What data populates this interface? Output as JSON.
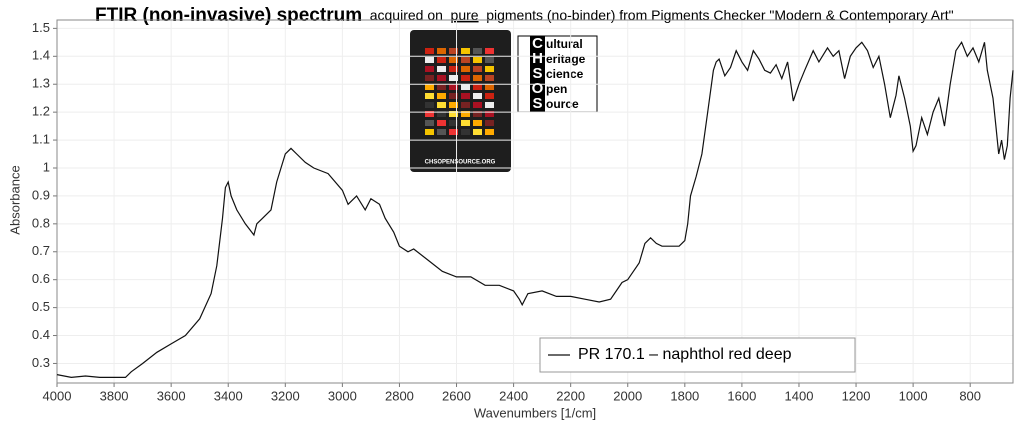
{
  "chart_data": {
    "type": "line",
    "title": "FTIR (non-invasive) spectrum",
    "subtitle_parts": [
      "acquired on",
      "pure",
      "pigments (no-binder) from Pigments Checker \"Modern & Contemporary Art\""
    ],
    "x_label": "Wavenumbers [1/cm]",
    "y_label": "Absorbance",
    "logo": {
      "letters": [
        "C",
        "H",
        "S",
        "O",
        "S"
      ],
      "rest": [
        "ultural",
        "eritage",
        "cience",
        "pen",
        "ource"
      ],
      "card_caption": "CHSOPENSOURCE.ORG"
    },
    "x": [
      4000,
      3950,
      3900,
      3850,
      3800,
      3760,
      3740,
      3700,
      3650,
      3600,
      3550,
      3500,
      3460,
      3440,
      3420,
      3410,
      3400,
      3390,
      3370,
      3340,
      3310,
      3300,
      3280,
      3250,
      3230,
      3200,
      3180,
      3160,
      3130,
      3100,
      3050,
      3000,
      2980,
      2950,
      2920,
      2900,
      2870,
      2850,
      2820,
      2800,
      2770,
      2750,
      2700,
      2650,
      2600,
      2550,
      2500,
      2450,
      2400,
      2380,
      2370,
      2350,
      2300,
      2250,
      2200,
      2150,
      2100,
      2060,
      2040,
      2020,
      2000,
      1960,
      1940,
      1920,
      1900,
      1880,
      1850,
      1820,
      1800,
      1790,
      1780,
      1760,
      1740,
      1720,
      1700,
      1690,
      1680,
      1660,
      1640,
      1620,
      1600,
      1580,
      1560,
      1540,
      1520,
      1500,
      1480,
      1460,
      1440,
      1420,
      1400,
      1380,
      1350,
      1330,
      1300,
      1280,
      1260,
      1240,
      1220,
      1200,
      1180,
      1160,
      1140,
      1120,
      1100,
      1080,
      1060,
      1050,
      1030,
      1010,
      1000,
      990,
      970,
      950,
      930,
      910,
      890,
      870,
      850,
      830,
      810,
      790,
      770,
      750,
      740,
      720,
      710,
      700,
      690,
      680,
      670,
      660,
      650
    ],
    "series": [
      {
        "name": "PR 170.1 – naphthol red deep",
        "color": "#111111",
        "values": [
          0.26,
          0.25,
          0.255,
          0.25,
          0.25,
          0.25,
          0.27,
          0.3,
          0.34,
          0.37,
          0.4,
          0.46,
          0.55,
          0.65,
          0.82,
          0.93,
          0.95,
          0.9,
          0.85,
          0.8,
          0.76,
          0.8,
          0.82,
          0.85,
          0.95,
          1.05,
          1.07,
          1.05,
          1.02,
          1.0,
          0.98,
          0.92,
          0.87,
          0.9,
          0.85,
          0.89,
          0.87,
          0.82,
          0.77,
          0.72,
          0.7,
          0.71,
          0.67,
          0.63,
          0.61,
          0.61,
          0.58,
          0.58,
          0.56,
          0.53,
          0.51,
          0.55,
          0.56,
          0.54,
          0.54,
          0.53,
          0.52,
          0.53,
          0.56,
          0.59,
          0.6,
          0.66,
          0.73,
          0.75,
          0.73,
          0.72,
          0.72,
          0.72,
          0.74,
          0.8,
          0.9,
          0.97,
          1.05,
          1.2,
          1.35,
          1.38,
          1.39,
          1.33,
          1.36,
          1.42,
          1.38,
          1.35,
          1.42,
          1.39,
          1.35,
          1.34,
          1.37,
          1.32,
          1.38,
          1.24,
          1.3,
          1.35,
          1.42,
          1.38,
          1.43,
          1.4,
          1.42,
          1.32,
          1.4,
          1.43,
          1.45,
          1.42,
          1.36,
          1.4,
          1.3,
          1.18,
          1.26,
          1.33,
          1.25,
          1.15,
          1.06,
          1.08,
          1.18,
          1.12,
          1.2,
          1.25,
          1.15,
          1.3,
          1.42,
          1.45,
          1.4,
          1.43,
          1.38,
          1.45,
          1.35,
          1.25,
          1.15,
          1.05,
          1.1,
          1.03,
          1.08,
          1.25,
          1.35
        ]
      }
    ],
    "xlim": [
      4000,
      650
    ],
    "xticks": [
      4000,
      3800,
      3600,
      3400,
      3200,
      3000,
      2800,
      2600,
      2400,
      2200,
      2000,
      1800,
      1600,
      1400,
      1200,
      1000,
      800
    ],
    "ylim": [
      0.23,
      1.53
    ],
    "yticks": [
      0.3,
      0.4,
      0.5,
      0.6,
      0.7,
      0.8,
      0.9,
      1,
      1.1,
      1.2,
      1.3,
      1.4,
      1.5
    ],
    "grid": true
  }
}
